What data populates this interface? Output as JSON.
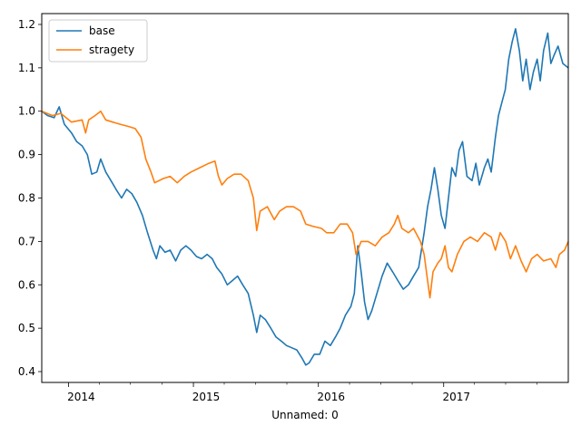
{
  "chart_data": {
    "type": "line",
    "title": "",
    "xlabel": "Unnamed: 0",
    "ylabel": "",
    "xlim": [
      "2013-10-15",
      "2017-12-31"
    ],
    "ylim": [
      0.375,
      1.225
    ],
    "x_ticks": [
      {
        "label": "2014",
        "date": "2014-01-01"
      },
      {
        "label": "2015",
        "date": "2015-01-01"
      },
      {
        "label": "2016",
        "date": "2016-01-01"
      },
      {
        "label": "2017",
        "date": "2017-01-01"
      }
    ],
    "y_ticks": [
      0.4,
      0.5,
      0.6,
      0.7,
      0.8,
      0.9,
      1.0,
      1.1,
      1.2
    ],
    "grid": false,
    "legend": {
      "position": "upper left"
    },
    "series": [
      {
        "name": "base",
        "color": "#1f77b4",
        "points": [
          [
            "2013-10-15",
            1.0
          ],
          [
            "2013-11-01",
            0.99
          ],
          [
            "2013-11-20",
            0.985
          ],
          [
            "2013-12-05",
            1.01
          ],
          [
            "2013-12-20",
            0.97
          ],
          [
            "2014-01-10",
            0.95
          ],
          [
            "2014-01-25",
            0.93
          ],
          [
            "2014-02-10",
            0.92
          ],
          [
            "2014-02-25",
            0.9
          ],
          [
            "2014-03-10",
            0.855
          ],
          [
            "2014-03-25",
            0.86
          ],
          [
            "2014-04-05",
            0.89
          ],
          [
            "2014-04-20",
            0.86
          ],
          [
            "2014-05-05",
            0.84
          ],
          [
            "2014-05-20",
            0.82
          ],
          [
            "2014-06-05",
            0.8
          ],
          [
            "2014-06-20",
            0.82
          ],
          [
            "2014-07-05",
            0.81
          ],
          [
            "2014-07-20",
            0.79
          ],
          [
            "2014-08-05",
            0.76
          ],
          [
            "2014-08-20",
            0.72
          ],
          [
            "2014-09-05",
            0.68
          ],
          [
            "2014-09-15",
            0.66
          ],
          [
            "2014-09-25",
            0.69
          ],
          [
            "2014-10-10",
            0.675
          ],
          [
            "2014-10-25",
            0.68
          ],
          [
            "2014-11-10",
            0.655
          ],
          [
            "2014-11-25",
            0.68
          ],
          [
            "2014-12-10",
            0.69
          ],
          [
            "2014-12-25",
            0.68
          ],
          [
            "2015-01-10",
            0.665
          ],
          [
            "2015-01-25",
            0.66
          ],
          [
            "2015-02-10",
            0.67
          ],
          [
            "2015-02-25",
            0.66
          ],
          [
            "2015-03-10",
            0.64
          ],
          [
            "2015-03-25",
            0.625
          ],
          [
            "2015-04-10",
            0.6
          ],
          [
            "2015-04-25",
            0.61
          ],
          [
            "2015-05-10",
            0.62
          ],
          [
            "2015-05-25",
            0.6
          ],
          [
            "2015-06-10",
            0.58
          ],
          [
            "2015-06-25",
            0.53
          ],
          [
            "2015-07-05",
            0.49
          ],
          [
            "2015-07-15",
            0.53
          ],
          [
            "2015-07-30",
            0.52
          ],
          [
            "2015-08-15",
            0.5
          ],
          [
            "2015-08-30",
            0.48
          ],
          [
            "2015-09-15",
            0.47
          ],
          [
            "2015-09-30",
            0.46
          ],
          [
            "2015-10-15",
            0.455
          ],
          [
            "2015-10-30",
            0.45
          ],
          [
            "2015-11-15",
            0.43
          ],
          [
            "2015-11-25",
            0.415
          ],
          [
            "2015-12-05",
            0.42
          ],
          [
            "2015-12-20",
            0.44
          ],
          [
            "2016-01-05",
            0.44
          ],
          [
            "2016-01-20",
            0.47
          ],
          [
            "2016-02-05",
            0.46
          ],
          [
            "2016-02-20",
            0.48
          ],
          [
            "2016-03-05",
            0.5
          ],
          [
            "2016-03-20",
            0.53
          ],
          [
            "2016-04-05",
            0.55
          ],
          [
            "2016-04-15",
            0.58
          ],
          [
            "2016-04-25",
            0.69
          ],
          [
            "2016-05-05",
            0.63
          ],
          [
            "2016-05-15",
            0.56
          ],
          [
            "2016-05-25",
            0.52
          ],
          [
            "2016-06-05",
            0.54
          ],
          [
            "2016-06-20",
            0.58
          ],
          [
            "2016-07-05",
            0.62
          ],
          [
            "2016-07-20",
            0.65
          ],
          [
            "2016-08-05",
            0.63
          ],
          [
            "2016-08-20",
            0.61
          ],
          [
            "2016-09-05",
            0.59
          ],
          [
            "2016-09-20",
            0.6
          ],
          [
            "2016-10-05",
            0.62
          ],
          [
            "2016-10-20",
            0.64
          ],
          [
            "2016-11-05",
            0.72
          ],
          [
            "2016-11-15",
            0.78
          ],
          [
            "2016-11-25",
            0.82
          ],
          [
            "2016-12-05",
            0.87
          ],
          [
            "2016-12-15",
            0.82
          ],
          [
            "2016-12-25",
            0.76
          ],
          [
            "2017-01-05",
            0.73
          ],
          [
            "2017-01-15",
            0.8
          ],
          [
            "2017-01-25",
            0.87
          ],
          [
            "2017-02-05",
            0.85
          ],
          [
            "2017-02-15",
            0.91
          ],
          [
            "2017-02-25",
            0.93
          ],
          [
            "2017-03-10",
            0.85
          ],
          [
            "2017-03-25",
            0.84
          ],
          [
            "2017-04-05",
            0.88
          ],
          [
            "2017-04-15",
            0.83
          ],
          [
            "2017-04-30",
            0.87
          ],
          [
            "2017-05-10",
            0.89
          ],
          [
            "2017-05-20",
            0.86
          ],
          [
            "2017-06-01",
            0.94
          ],
          [
            "2017-06-10",
            0.99
          ],
          [
            "2017-06-20",
            1.02
          ],
          [
            "2017-06-30",
            1.05
          ],
          [
            "2017-07-10",
            1.12
          ],
          [
            "2017-07-20",
            1.16
          ],
          [
            "2017-07-30",
            1.19
          ],
          [
            "2017-08-10",
            1.14
          ],
          [
            "2017-08-20",
            1.07
          ],
          [
            "2017-08-30",
            1.12
          ],
          [
            "2017-09-10",
            1.05
          ],
          [
            "2017-09-20",
            1.09
          ],
          [
            "2017-10-01",
            1.12
          ],
          [
            "2017-10-10",
            1.07
          ],
          [
            "2017-10-20",
            1.14
          ],
          [
            "2017-11-01",
            1.18
          ],
          [
            "2017-11-10",
            1.11
          ],
          [
            "2017-11-20",
            1.13
          ],
          [
            "2017-12-01",
            1.15
          ],
          [
            "2017-12-15",
            1.11
          ],
          [
            "2017-12-31",
            1.1
          ]
        ]
      },
      {
        "name": "stragety",
        "color": "#ff7f0e",
        "points": [
          [
            "2013-10-15",
            1.0
          ],
          [
            "2013-11-15",
            0.99
          ],
          [
            "2013-12-10",
            0.995
          ],
          [
            "2013-12-25",
            0.985
          ],
          [
            "2014-01-10",
            0.975
          ],
          [
            "2014-02-10",
            0.98
          ],
          [
            "2014-02-20",
            0.95
          ],
          [
            "2014-03-01",
            0.98
          ],
          [
            "2014-03-20",
            0.99
          ],
          [
            "2014-04-05",
            1.0
          ],
          [
            "2014-04-20",
            0.98
          ],
          [
            "2014-05-10",
            0.975
          ],
          [
            "2014-06-01",
            0.97
          ],
          [
            "2014-06-25",
            0.965
          ],
          [
            "2014-07-15",
            0.96
          ],
          [
            "2014-08-01",
            0.94
          ],
          [
            "2014-08-15",
            0.89
          ],
          [
            "2014-08-30",
            0.86
          ],
          [
            "2014-09-10",
            0.835
          ],
          [
            "2014-10-05",
            0.845
          ],
          [
            "2014-10-25",
            0.85
          ],
          [
            "2014-11-15",
            0.835
          ],
          [
            "2014-12-05",
            0.85
          ],
          [
            "2014-12-25",
            0.86
          ],
          [
            "2015-01-20",
            0.87
          ],
          [
            "2015-02-15",
            0.88
          ],
          [
            "2015-03-05",
            0.885
          ],
          [
            "2015-03-15",
            0.85
          ],
          [
            "2015-03-25",
            0.83
          ],
          [
            "2015-04-10",
            0.845
          ],
          [
            "2015-04-30",
            0.855
          ],
          [
            "2015-05-20",
            0.855
          ],
          [
            "2015-06-10",
            0.84
          ],
          [
            "2015-06-25",
            0.8
          ],
          [
            "2015-07-05",
            0.725
          ],
          [
            "2015-07-15",
            0.77
          ],
          [
            "2015-08-05",
            0.78
          ],
          [
            "2015-08-25",
            0.75
          ],
          [
            "2015-09-10",
            0.77
          ],
          [
            "2015-09-30",
            0.78
          ],
          [
            "2015-10-20",
            0.78
          ],
          [
            "2015-11-10",
            0.77
          ],
          [
            "2015-11-25",
            0.74
          ],
          [
            "2015-12-15",
            0.735
          ],
          [
            "2016-01-10",
            0.73
          ],
          [
            "2016-01-25",
            0.72
          ],
          [
            "2016-02-15",
            0.72
          ],
          [
            "2016-03-05",
            0.74
          ],
          [
            "2016-03-25",
            0.74
          ],
          [
            "2016-04-10",
            0.72
          ],
          [
            "2016-04-20",
            0.67
          ],
          [
            "2016-05-05",
            0.7
          ],
          [
            "2016-05-25",
            0.7
          ],
          [
            "2016-06-15",
            0.69
          ],
          [
            "2016-07-05",
            0.71
          ],
          [
            "2016-07-25",
            0.72
          ],
          [
            "2016-08-10",
            0.74
          ],
          [
            "2016-08-20",
            0.76
          ],
          [
            "2016-09-01",
            0.73
          ],
          [
            "2016-09-20",
            0.72
          ],
          [
            "2016-10-05",
            0.73
          ],
          [
            "2016-10-25",
            0.7
          ],
          [
            "2016-11-05",
            0.67
          ],
          [
            "2016-11-15",
            0.61
          ],
          [
            "2016-11-22",
            0.57
          ],
          [
            "2016-12-01",
            0.63
          ],
          [
            "2016-12-15",
            0.65
          ],
          [
            "2016-12-25",
            0.66
          ],
          [
            "2017-01-05",
            0.69
          ],
          [
            "2017-01-15",
            0.64
          ],
          [
            "2017-01-25",
            0.63
          ],
          [
            "2017-02-10",
            0.67
          ],
          [
            "2017-03-01",
            0.7
          ],
          [
            "2017-03-20",
            0.71
          ],
          [
            "2017-04-10",
            0.7
          ],
          [
            "2017-04-30",
            0.72
          ],
          [
            "2017-05-20",
            0.71
          ],
          [
            "2017-06-01",
            0.68
          ],
          [
            "2017-06-15",
            0.72
          ],
          [
            "2017-07-01",
            0.7
          ],
          [
            "2017-07-15",
            0.66
          ],
          [
            "2017-07-30",
            0.69
          ],
          [
            "2017-08-15",
            0.655
          ],
          [
            "2017-08-30",
            0.63
          ],
          [
            "2017-09-15",
            0.66
          ],
          [
            "2017-10-01",
            0.67
          ],
          [
            "2017-10-20",
            0.655
          ],
          [
            "2017-11-10",
            0.66
          ],
          [
            "2017-11-25",
            0.64
          ],
          [
            "2017-12-05",
            0.67
          ],
          [
            "2017-12-20",
            0.68
          ],
          [
            "2017-12-31",
            0.7
          ]
        ]
      }
    ]
  }
}
